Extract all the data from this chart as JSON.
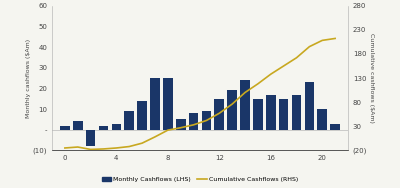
{
  "quarters": [
    0,
    1,
    2,
    3,
    4,
    5,
    6,
    7,
    8,
    9,
    10,
    11,
    12,
    13,
    14,
    15,
    16,
    17,
    18,
    19,
    20,
    21
  ],
  "monthly_cashflows": [
    2,
    4,
    -8,
    2,
    3,
    9,
    14,
    25,
    25,
    5,
    8,
    9,
    15,
    19,
    24,
    15,
    17,
    15,
    17,
    23,
    10,
    3
  ],
  "cumulative_cashflows": [
    -15,
    -13,
    -18,
    -17,
    -15,
    -12,
    -5,
    8,
    22,
    27,
    33,
    42,
    57,
    76,
    100,
    118,
    138,
    155,
    172,
    195,
    208,
    212
  ],
  "bar_color": "#1a3668",
  "line_color": "#c8a820",
  "ylabel_left": "Monthly cashflows ($Am)",
  "ylabel_right": "Cumulative cashflows ($Am)",
  "ylim_left": [
    -10,
    60
  ],
  "ylim_right": [
    -20,
    280
  ],
  "yticks_left": [
    -10,
    0,
    10,
    20,
    30,
    40,
    50,
    60
  ],
  "yticks_right": [
    -20,
    30,
    80,
    130,
    180,
    230,
    280
  ],
  "xticks": [
    0,
    4,
    8,
    12,
    16,
    20
  ],
  "legend_bar": "Monthly Cashflows (LHS)",
  "legend_line": "Cumulative Cashflows (RHS)",
  "bg_color": "#f5f5f0",
  "plot_bg": "#f5f5f0"
}
